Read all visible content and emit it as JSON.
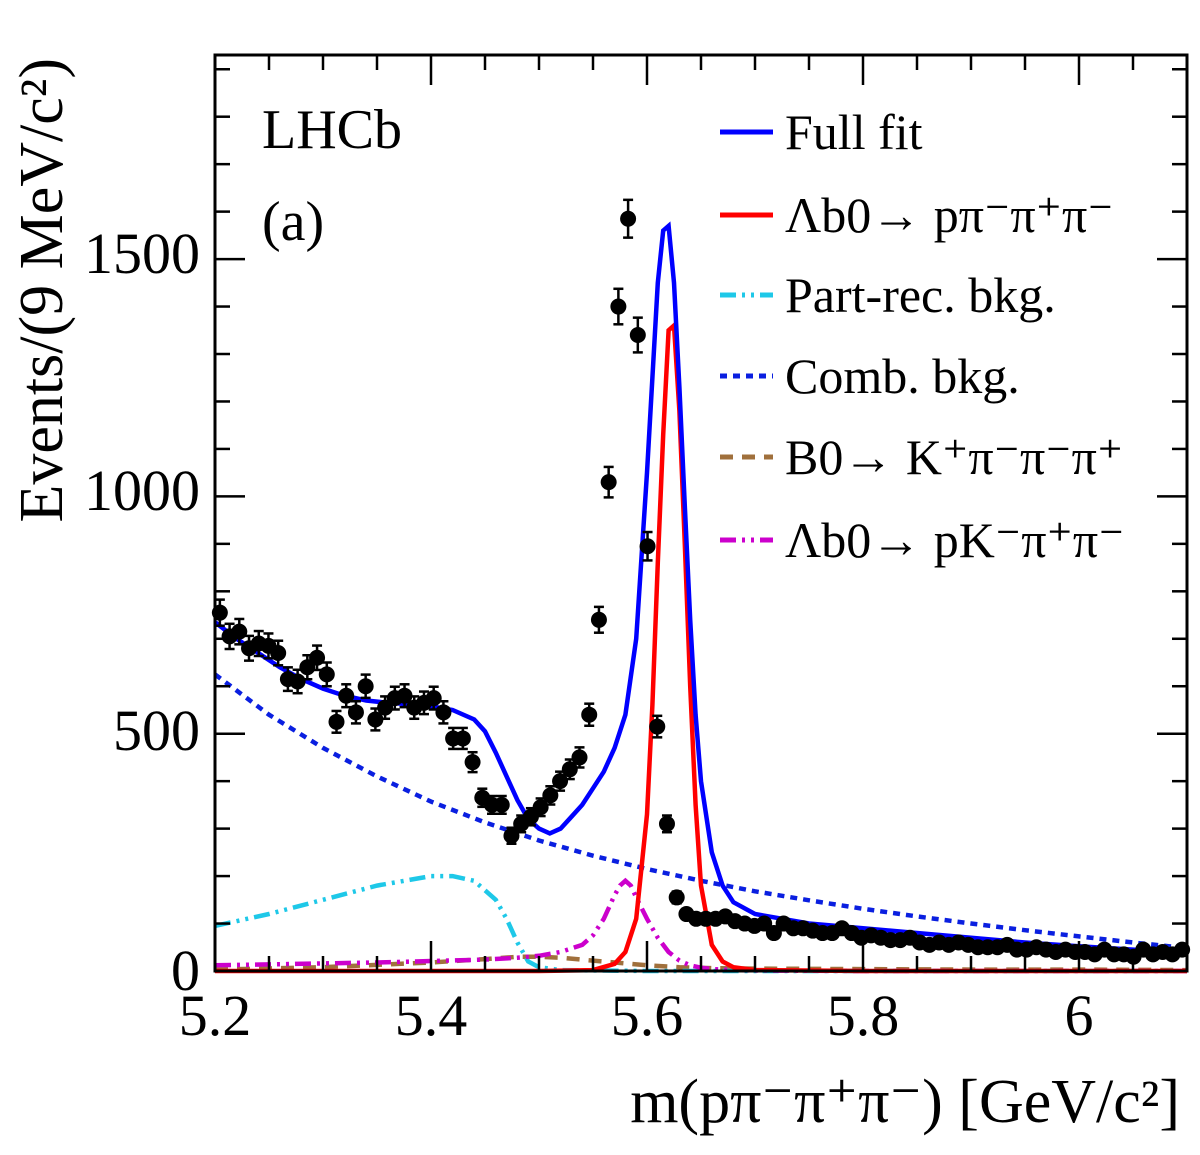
{
  "chart_data": {
    "type": "line",
    "title": "",
    "annotations": [
      "LHCb",
      "(a)"
    ],
    "xlabel": "m(pπ⁻π⁺π⁻) [GeV/c²]",
    "ylabel": "Events/(9 MeV/c²)",
    "xlim": [
      5.2,
      6.1
    ],
    "ylim": [
      0,
      1930
    ],
    "x_ticks": [
      "5.2",
      "5.4",
      "5.6",
      "5.8",
      "6"
    ],
    "y_ticks": [
      "0",
      "500",
      "1000",
      "1500"
    ],
    "legend_position": "top-right",
    "legend": [
      {
        "key": "full",
        "label": "Full fit",
        "color": "#0000ff",
        "style": "solid"
      },
      {
        "key": "signal",
        "label": "Λb0→ pπ⁻π⁺π⁻",
        "color": "#ff0000",
        "style": "solid"
      },
      {
        "key": "partrec",
        "label": "Part-rec. bkg.",
        "color": "#1ec8e8",
        "style": "dash-dot-dot"
      },
      {
        "key": "comb",
        "label": "Comb. bkg.",
        "color": "#0a1fe0",
        "style": "dotted"
      },
      {
        "key": "b0",
        "label": "B0→ K⁺π⁻π⁻π⁺",
        "color": "#a0703c",
        "style": "dashed"
      },
      {
        "key": "pk",
        "label": "Λb0→ pK⁻π⁺π⁻",
        "color": "#cc00cc",
        "style": "dash-dot-dot"
      }
    ],
    "data_points": {
      "name": "Data",
      "x": [
        5.2045,
        5.2135,
        5.2225,
        5.2315,
        5.2405,
        5.2495,
        5.2585,
        5.2675,
        5.2765,
        5.2855,
        5.2945,
        5.3035,
        5.3125,
        5.3215,
        5.3305,
        5.3395,
        5.3485,
        5.3575,
        5.3665,
        5.3755,
        5.3845,
        5.3935,
        5.4025,
        5.4115,
        5.4205,
        5.4295,
        5.4385,
        5.4475,
        5.4565,
        5.4655,
        5.4745,
        5.4835,
        5.4925,
        5.5015,
        5.5105,
        5.5195,
        5.5285,
        5.5375,
        5.5465,
        5.5555,
        5.5645,
        5.5735,
        5.5825,
        5.5915,
        5.6005,
        5.6095,
        5.6185,
        5.6275,
        5.6365,
        5.6455,
        5.6545,
        5.6635,
        5.6725,
        5.6815,
        5.6905,
        5.6995,
        5.7085,
        5.7175,
        5.7265,
        5.7355,
        5.7445,
        5.7535,
        5.7625,
        5.7715,
        5.7805,
        5.7895,
        5.7985,
        5.8075,
        5.8165,
        5.8255,
        5.8345,
        5.8435,
        5.8525,
        5.8615,
        5.8705,
        5.8795,
        5.8885,
        5.8975,
        5.9065,
        5.9155,
        5.9245,
        5.9335,
        5.9425,
        5.9515,
        5.9605,
        5.9695,
        5.9785,
        5.9875,
        5.9965,
        6.0055,
        6.0145,
        6.0235,
        6.0325,
        6.0415,
        6.0505,
        6.0595,
        6.0685,
        6.0775,
        6.0865,
        6.0955
      ],
      "y": [
        755,
        705,
        715,
        680,
        690,
        685,
        670,
        615,
        610,
        640,
        660,
        625,
        525,
        580,
        545,
        600,
        530,
        555,
        575,
        580,
        555,
        565,
        575,
        545,
        490,
        490,
        440,
        365,
        350,
        350,
        285,
        310,
        325,
        345,
        370,
        400,
        425,
        450,
        540,
        740,
        1030,
        1400,
        1585,
        1340,
        895,
        515,
        310,
        155,
        120,
        110,
        110,
        110,
        115,
        105,
        100,
        95,
        100,
        80,
        100,
        90,
        90,
        85,
        80,
        80,
        90,
        80,
        70,
        75,
        70,
        65,
        65,
        70,
        60,
        55,
        60,
        55,
        60,
        55,
        50,
        50,
        50,
        55,
        45,
        45,
        50,
        45,
        40,
        45,
        40,
        40,
        35,
        45,
        35,
        35,
        30,
        45,
        35,
        40,
        35,
        45
      ]
    },
    "series": [
      {
        "key": "full",
        "name": "Full fit",
        "x": [
          5.2,
          5.22,
          5.24,
          5.26,
          5.28,
          5.3,
          5.32,
          5.34,
          5.36,
          5.38,
          5.4,
          5.42,
          5.44,
          5.45,
          5.46,
          5.47,
          5.48,
          5.49,
          5.5,
          5.51,
          5.52,
          5.53,
          5.54,
          5.55,
          5.56,
          5.57,
          5.58,
          5.59,
          5.6,
          5.605,
          5.61,
          5.615,
          5.62,
          5.625,
          5.63,
          5.635,
          5.64,
          5.645,
          5.65,
          5.66,
          5.67,
          5.68,
          5.7,
          5.75,
          5.8,
          5.85,
          5.9,
          5.95,
          6.0,
          6.05,
          6.1
        ],
        "y": [
          735,
          700,
          670,
          640,
          615,
          595,
          580,
          570,
          565,
          562,
          558,
          550,
          530,
          505,
          460,
          410,
          360,
          320,
          300,
          290,
          300,
          325,
          350,
          385,
          420,
          470,
          540,
          700,
          1050,
          1250,
          1450,
          1560,
          1570,
          1450,
          1230,
          980,
          740,
          540,
          400,
          250,
          180,
          145,
          120,
          100,
          90,
          80,
          70,
          60,
          52,
          45,
          38
        ]
      },
      {
        "key": "signal",
        "name": "Λb0→ pπ⁻π⁺π⁻",
        "x": [
          5.2,
          5.5,
          5.55,
          5.57,
          5.58,
          5.59,
          5.6,
          5.605,
          5.61,
          5.615,
          5.62,
          5.625,
          5.63,
          5.635,
          5.64,
          5.645,
          5.65,
          5.66,
          5.67,
          5.68,
          5.7,
          5.8,
          6.1
        ],
        "y": [
          0,
          0,
          2,
          15,
          40,
          110,
          330,
          560,
          860,
          1130,
          1350,
          1360,
          1180,
          900,
          600,
          350,
          180,
          55,
          20,
          8,
          2,
          0,
          0
        ]
      },
      {
        "key": "partrec",
        "name": "Part-rec. bkg.",
        "x": [
          5.2,
          5.25,
          5.3,
          5.35,
          5.4,
          5.42,
          5.44,
          5.46,
          5.47,
          5.48,
          5.49,
          5.5,
          5.52,
          5.6,
          5.7,
          6.1
        ],
        "y": [
          95,
          120,
          150,
          180,
          200,
          200,
          190,
          150,
          110,
          60,
          20,
          8,
          2,
          0,
          0,
          0
        ]
      },
      {
        "key": "comb",
        "name": "Comb. bkg.",
        "x": [
          5.2,
          5.25,
          5.3,
          5.35,
          5.4,
          5.45,
          5.5,
          5.55,
          5.6,
          5.65,
          5.7,
          5.75,
          5.8,
          5.85,
          5.9,
          5.95,
          6.0,
          6.05,
          6.1
        ],
        "y": [
          625,
          540,
          470,
          410,
          357,
          313,
          275,
          243,
          215,
          190,
          168,
          149,
          131,
          115,
          100,
          86,
          73,
          60,
          48
        ]
      },
      {
        "key": "b0",
        "name": "B0→ K⁺π⁻π⁻π⁺",
        "x": [
          5.2,
          5.3,
          5.4,
          5.45,
          5.48,
          5.5,
          5.52,
          5.55,
          5.58,
          5.6,
          5.63,
          5.66,
          5.7,
          5.8,
          5.9,
          6.0,
          6.1
        ],
        "y": [
          3,
          8,
          18,
          25,
          30,
          30,
          28,
          22,
          16,
          12,
          8,
          6,
          5,
          4,
          3,
          3,
          2
        ]
      },
      {
        "key": "pk",
        "name": "Λb0→ pK⁻π⁺π⁻",
        "x": [
          5.2,
          5.25,
          5.3,
          5.35,
          5.4,
          5.45,
          5.48,
          5.5,
          5.52,
          5.54,
          5.55,
          5.56,
          5.57,
          5.575,
          5.58,
          5.585,
          5.59,
          5.6,
          5.61,
          5.62,
          5.63,
          5.64,
          5.65,
          5.66,
          5.68,
          5.7,
          5.8,
          6.1
        ],
        "y": [
          12,
          14,
          16,
          18,
          21,
          24,
          28,
          32,
          40,
          55,
          75,
          110,
          160,
          180,
          190,
          180,
          155,
          110,
          70,
          40,
          22,
          12,
          7,
          4,
          2,
          1,
          0,
          0
        ]
      }
    ]
  }
}
